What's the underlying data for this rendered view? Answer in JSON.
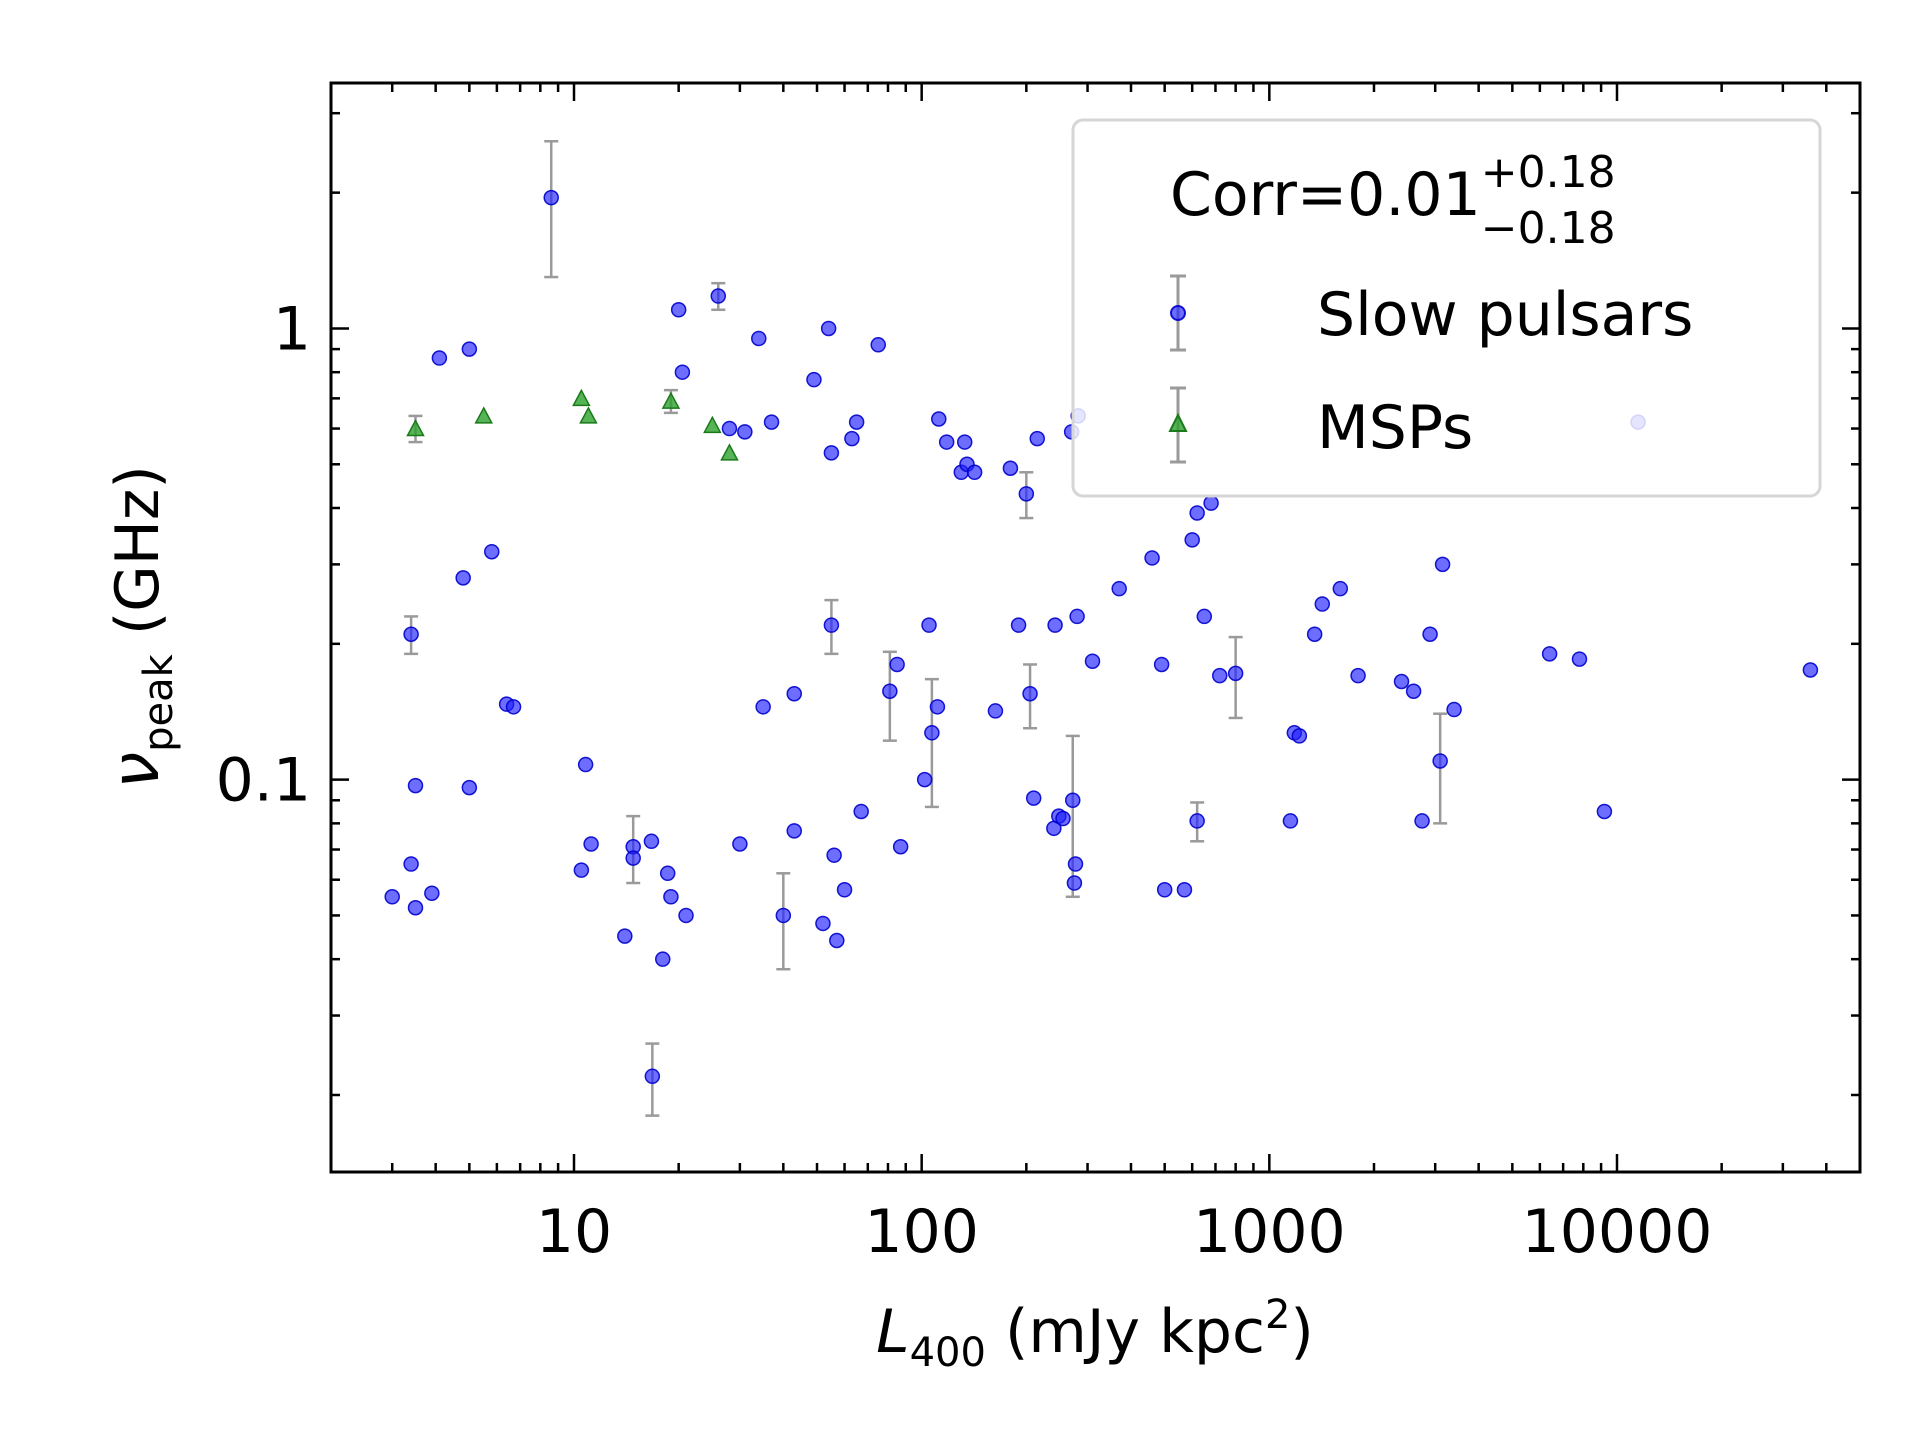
{
  "chart_data": {
    "type": "scatter",
    "xlabel": {
      "main": "L",
      "sub": "400",
      "rest": " (mJy kpc",
      "sup": "2",
      "end": ")"
    },
    "ylabel": {
      "main": "ν",
      "sub": "peak",
      "rest": " (GHz)"
    },
    "xscale": "log",
    "yscale": "log",
    "xlim": [
      2,
      50000
    ],
    "ylim": [
      0.0135,
      3.5
    ],
    "x_ticks": [
      {
        "value": 10,
        "label": "10"
      },
      {
        "value": 100,
        "label": "100"
      },
      {
        "value": 1000,
        "label": "1000"
      },
      {
        "value": 10000,
        "label": "10000"
      }
    ],
    "y_ticks": [
      {
        "value": 0.1,
        "label": "0.1"
      },
      {
        "value": 1,
        "label": "1"
      }
    ],
    "grid": false,
    "legend_placement": "top-right",
    "annotation": {
      "base": "Corr=0.01",
      "sup": "+0.18",
      "sub": "−0.18"
    },
    "series": [
      {
        "name": "Slow pulsars",
        "marker": "circle",
        "color": "#1f1fff",
        "points": [
          {
            "x": 3.0,
            "y": 0.055
          },
          {
            "x": 3.4,
            "y": 0.065
          },
          {
            "x": 3.5,
            "y": 0.052
          },
          {
            "x": 3.9,
            "y": 0.056
          },
          {
            "x": 3.4,
            "y": 0.21,
            "e": 0.02
          },
          {
            "x": 3.5,
            "y": 0.097
          },
          {
            "x": 4.1,
            "y": 0.86
          },
          {
            "x": 4.8,
            "y": 0.28
          },
          {
            "x": 5.0,
            "y": 0.9
          },
          {
            "x": 5.0,
            "y": 0.096
          },
          {
            "x": 5.8,
            "y": 0.32
          },
          {
            "x": 6.4,
            "y": 0.147
          },
          {
            "x": 6.7,
            "y": 0.145
          },
          {
            "x": 8.6,
            "y": 1.95,
            "e": 0.65
          },
          {
            "x": 10.5,
            "y": 0.063
          },
          {
            "x": 10.8,
            "y": 0.108
          },
          {
            "x": 11.2,
            "y": 0.072
          },
          {
            "x": 14.0,
            "y": 0.045
          },
          {
            "x": 14.8,
            "y": 0.071,
            "e": 0.012
          },
          {
            "x": 14.8,
            "y": 0.067
          },
          {
            "x": 16.7,
            "y": 0.073
          },
          {
            "x": 16.8,
            "y": 0.022,
            "e": 0.004
          },
          {
            "x": 18.0,
            "y": 0.04
          },
          {
            "x": 18.6,
            "y": 0.062
          },
          {
            "x": 19.0,
            "y": 0.055
          },
          {
            "x": 20.0,
            "y": 1.1
          },
          {
            "x": 20.5,
            "y": 0.8
          },
          {
            "x": 21.0,
            "y": 0.05
          },
          {
            "x": 26.0,
            "y": 1.18,
            "e": 0.08
          },
          {
            "x": 28.0,
            "y": 0.6
          },
          {
            "x": 30.0,
            "y": 0.072
          },
          {
            "x": 31.0,
            "y": 0.59
          },
          {
            "x": 34.0,
            "y": 0.95
          },
          {
            "x": 35.0,
            "y": 0.145
          },
          {
            "x": 37.0,
            "y": 0.62
          },
          {
            "x": 40.0,
            "y": 0.05,
            "e": 0.012
          },
          {
            "x": 43.0,
            "y": 0.155
          },
          {
            "x": 43.0,
            "y": 0.077
          },
          {
            "x": 49.0,
            "y": 0.77
          },
          {
            "x": 52.0,
            "y": 0.048
          },
          {
            "x": 54.0,
            "y": 1.0
          },
          {
            "x": 55.0,
            "y": 0.22,
            "e": 0.03
          },
          {
            "x": 55.0,
            "y": 0.53
          },
          {
            "x": 56.0,
            "y": 0.068
          },
          {
            "x": 57.0,
            "y": 0.044
          },
          {
            "x": 60.0,
            "y": 0.057
          },
          {
            "x": 63.0,
            "y": 0.57
          },
          {
            "x": 65.0,
            "y": 0.62
          },
          {
            "x": 67.0,
            "y": 0.085
          },
          {
            "x": 75.0,
            "y": 0.92
          },
          {
            "x": 81.0,
            "y": 0.157,
            "e": 0.035
          },
          {
            "x": 85.0,
            "y": 0.18
          },
          {
            "x": 87.0,
            "y": 0.071
          },
          {
            "x": 102.0,
            "y": 0.1
          },
          {
            "x": 105.0,
            "y": 0.22
          },
          {
            "x": 107.0,
            "y": 0.127,
            "e": 0.04
          },
          {
            "x": 111.0,
            "y": 0.145
          },
          {
            "x": 112.0,
            "y": 0.63
          },
          {
            "x": 118.0,
            "y": 0.56
          },
          {
            "x": 130.0,
            "y": 0.48
          },
          {
            "x": 133.0,
            "y": 0.56
          },
          {
            "x": 135.0,
            "y": 0.5
          },
          {
            "x": 142.0,
            "y": 0.48
          },
          {
            "x": 163.0,
            "y": 0.142
          },
          {
            "x": 180.0,
            "y": 0.49
          },
          {
            "x": 190.0,
            "y": 0.22
          },
          {
            "x": 200.0,
            "y": 0.43,
            "e": 0.05
          },
          {
            "x": 205.0,
            "y": 0.155,
            "e": 0.025
          },
          {
            "x": 210.0,
            "y": 0.091
          },
          {
            "x": 215.0,
            "y": 0.57
          },
          {
            "x": 240.0,
            "y": 0.078
          },
          {
            "x": 242.0,
            "y": 0.22
          },
          {
            "x": 248.0,
            "y": 0.083
          },
          {
            "x": 255.0,
            "y": 0.082
          },
          {
            "x": 270.0,
            "y": 0.59
          },
          {
            "x": 272.0,
            "y": 0.09,
            "e": 0.035
          },
          {
            "x": 275.0,
            "y": 0.059
          },
          {
            "x": 277.0,
            "y": 0.065
          },
          {
            "x": 280.0,
            "y": 0.23
          },
          {
            "x": 282.0,
            "y": 0.64
          },
          {
            "x": 310.0,
            "y": 0.183
          },
          {
            "x": 370.0,
            "y": 0.265
          },
          {
            "x": 460.0,
            "y": 0.31
          },
          {
            "x": 490.0,
            "y": 0.18
          },
          {
            "x": 500.0,
            "y": 0.057
          },
          {
            "x": 570.0,
            "y": 0.057
          },
          {
            "x": 600.0,
            "y": 0.34
          },
          {
            "x": 620.0,
            "y": 0.081,
            "e": 0.008
          },
          {
            "x": 620.0,
            "y": 0.39
          },
          {
            "x": 650.0,
            "y": 0.23
          },
          {
            "x": 680.0,
            "y": 0.41
          },
          {
            "x": 720.0,
            "y": 0.17
          },
          {
            "x": 800.0,
            "y": 0.172,
            "e": 0.035
          },
          {
            "x": 1150.0,
            "y": 0.081
          },
          {
            "x": 1180.0,
            "y": 0.127
          },
          {
            "x": 1220.0,
            "y": 0.125
          },
          {
            "x": 1350.0,
            "y": 0.21
          },
          {
            "x": 1420.0,
            "y": 0.245
          },
          {
            "x": 1600.0,
            "y": 0.265
          },
          {
            "x": 1800.0,
            "y": 0.17
          },
          {
            "x": 2400.0,
            "y": 0.165
          },
          {
            "x": 2600.0,
            "y": 0.157
          },
          {
            "x": 2750.0,
            "y": 0.081
          },
          {
            "x": 2900.0,
            "y": 0.21
          },
          {
            "x": 3100.0,
            "y": 0.11,
            "e": 0.03
          },
          {
            "x": 3150.0,
            "y": 0.3
          },
          {
            "x": 3400.0,
            "y": 0.143
          },
          {
            "x": 6400.0,
            "y": 0.19
          },
          {
            "x": 7800.0,
            "y": 0.185
          },
          {
            "x": 9200.0,
            "y": 0.085
          },
          {
            "x": 11500.0,
            "y": 0.62
          },
          {
            "x": 36000.0,
            "y": 0.175
          }
        ]
      },
      {
        "name": "MSPs",
        "marker": "triangle",
        "color": "#2ca02c",
        "points": [
          {
            "x": 3.5,
            "y": 0.6,
            "e": 0.04
          },
          {
            "x": 5.5,
            "y": 0.64
          },
          {
            "x": 10.5,
            "y": 0.7
          },
          {
            "x": 11.0,
            "y": 0.64
          },
          {
            "x": 19.0,
            "y": 0.69,
            "e": 0.04
          },
          {
            "x": 25.0,
            "y": 0.61
          },
          {
            "x": 28.0,
            "y": 0.53
          }
        ]
      }
    ]
  }
}
